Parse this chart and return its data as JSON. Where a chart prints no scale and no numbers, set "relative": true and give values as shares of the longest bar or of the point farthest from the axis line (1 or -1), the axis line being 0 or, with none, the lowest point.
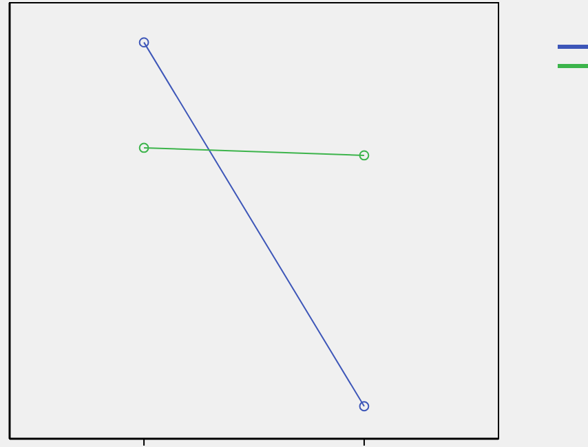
{
  "chart_data": {
    "type": "line",
    "relative": true,
    "categories": [
      null,
      null
    ],
    "marker": "circle",
    "series": [
      {
        "color": "#3d56b8",
        "values": [
          1,
          0.082
        ]
      },
      {
        "color": "#3cb44b",
        "values": [
          0.734,
          0.715
        ]
      }
    ]
  }
}
